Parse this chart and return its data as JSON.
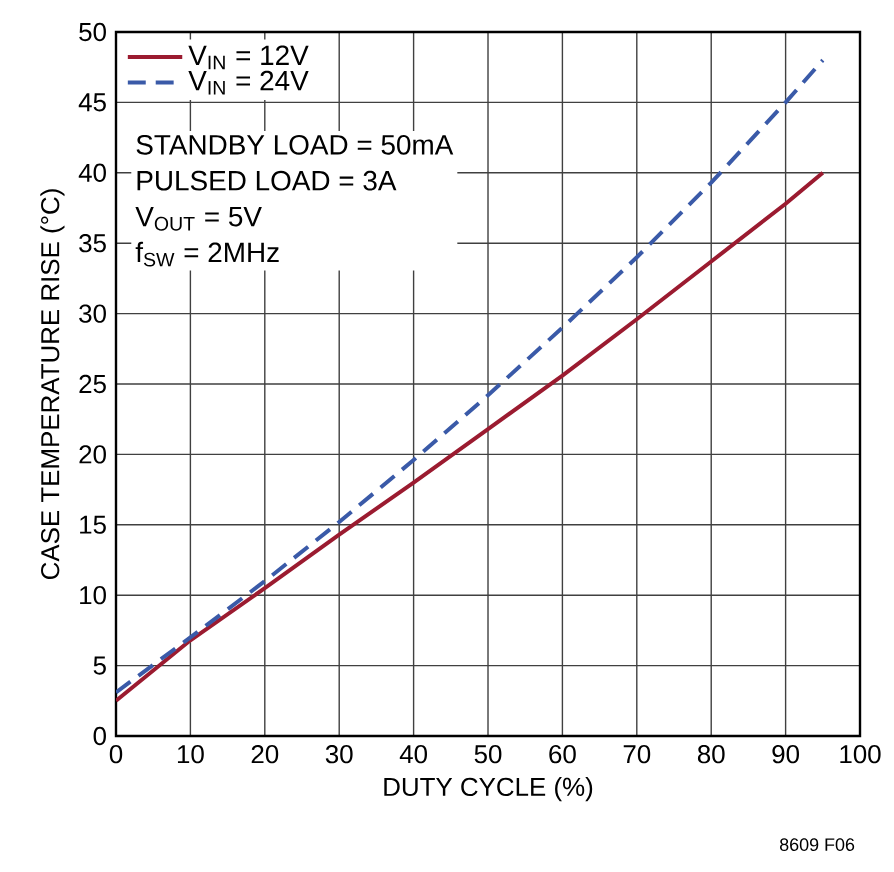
{
  "chart_data": {
    "type": "line",
    "xlabel": "DUTY CYCLE (%)",
    "ylabel": "CASE TEMPERATURE RISE (°C)",
    "x": [
      0,
      10,
      20,
      30,
      40,
      50,
      60,
      70,
      80,
      90,
      95
    ],
    "series": [
      {
        "name": "V$_{IN}$ = 12V",
        "color": "#9b1b30",
        "line_style": "solid",
        "values": [
          2.5,
          6.8,
          10.5,
          14.3,
          18,
          21.8,
          25.6,
          29.6,
          33.7,
          37.8,
          40
        ]
      },
      {
        "name": "V$_{IN}$ = 24V",
        "color": "#3a5aa8",
        "line_style": "dashed",
        "values": [
          3.1,
          7,
          11,
          15.2,
          19.6,
          24.2,
          29,
          34,
          39.3,
          45,
          48
        ]
      }
    ],
    "xlim": [
      0,
      100
    ],
    "xticks": [
      0,
      10,
      20,
      30,
      40,
      50,
      60,
      70,
      80,
      90,
      100
    ],
    "ylim": [
      0,
      50
    ],
    "yticks": [
      0,
      5,
      10,
      15,
      20,
      25,
      30,
      35,
      40,
      45,
      50
    ],
    "grid": true,
    "legend": "top left",
    "marker": "none",
    "annotations": [
      "STANDBY LOAD = 50mA",
      "PULSED LOAD = 3A",
      "V$_{OUT}$ = 5V",
      "f$_{SW}$ = 2MHz",
      "8609 F06"
    ]
  }
}
